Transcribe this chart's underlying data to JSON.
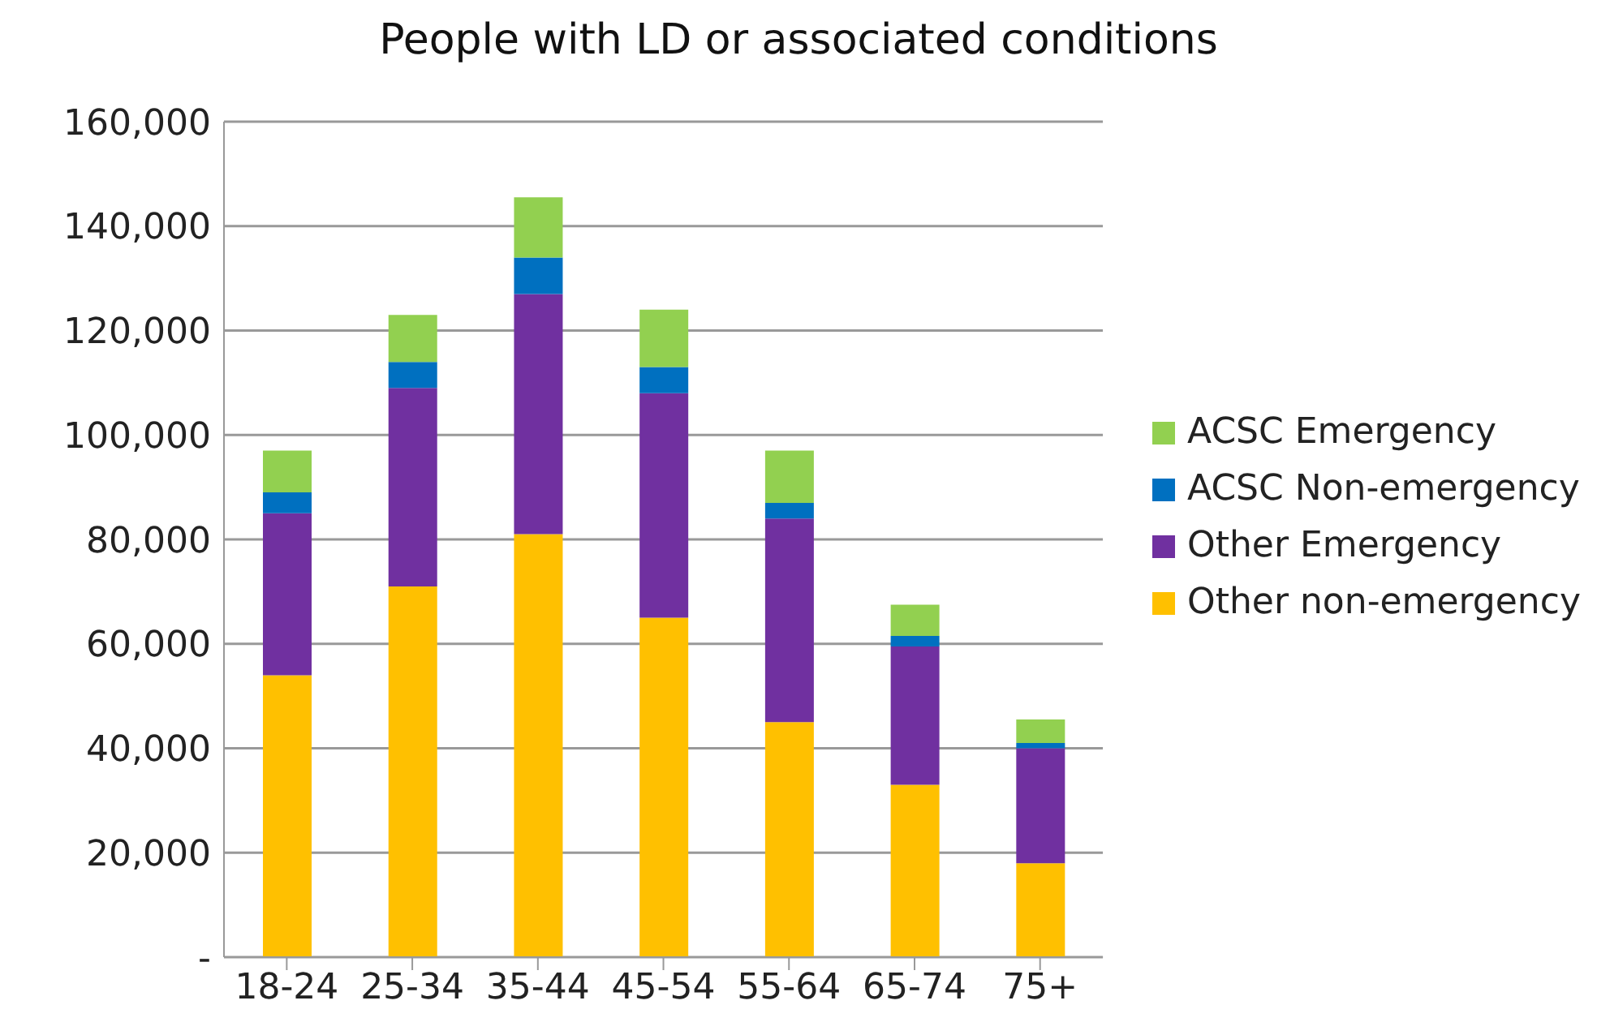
{
  "chart_data": {
    "type": "bar",
    "title": "People with LD or associated conditions",
    "categories": [
      "18-24",
      "25-34",
      "35-44",
      "45-54",
      "55-64",
      "65-74",
      "75+"
    ],
    "stacked": true,
    "series": [
      {
        "name": "Other non-emergency",
        "color": "#ffc000",
        "values": [
          54000,
          71000,
          81000,
          65000,
          45000,
          33000,
          18000
        ]
      },
      {
        "name": "Other Emergency",
        "color": "#7030a0",
        "values": [
          31000,
          38000,
          46000,
          43000,
          39000,
          26500,
          22000
        ]
      },
      {
        "name": "ACSC Non-emergency",
        "color": "#0070c0",
        "values": [
          4000,
          5000,
          7000,
          5000,
          3000,
          2000,
          1000
        ]
      },
      {
        "name": "ACSC Emergency",
        "color": "#92d050",
        "values": [
          8000,
          9000,
          11500,
          11000,
          10000,
          6000,
          4500
        ]
      }
    ],
    "ylim": [
      0,
      160000
    ],
    "yticks": [
      {
        "value": 0,
        "label": "-"
      },
      {
        "value": 20000,
        "label": "20,000"
      },
      {
        "value": 40000,
        "label": "40,000"
      },
      {
        "value": 60000,
        "label": "60,000"
      },
      {
        "value": 80000,
        "label": "80,000"
      },
      {
        "value": 100000,
        "label": "100,000"
      },
      {
        "value": 120000,
        "label": "120,000"
      },
      {
        "value": 140000,
        "label": "140,000"
      },
      {
        "value": 160000,
        "label": "160,000"
      }
    ],
    "grid": "y",
    "legend": "right"
  }
}
